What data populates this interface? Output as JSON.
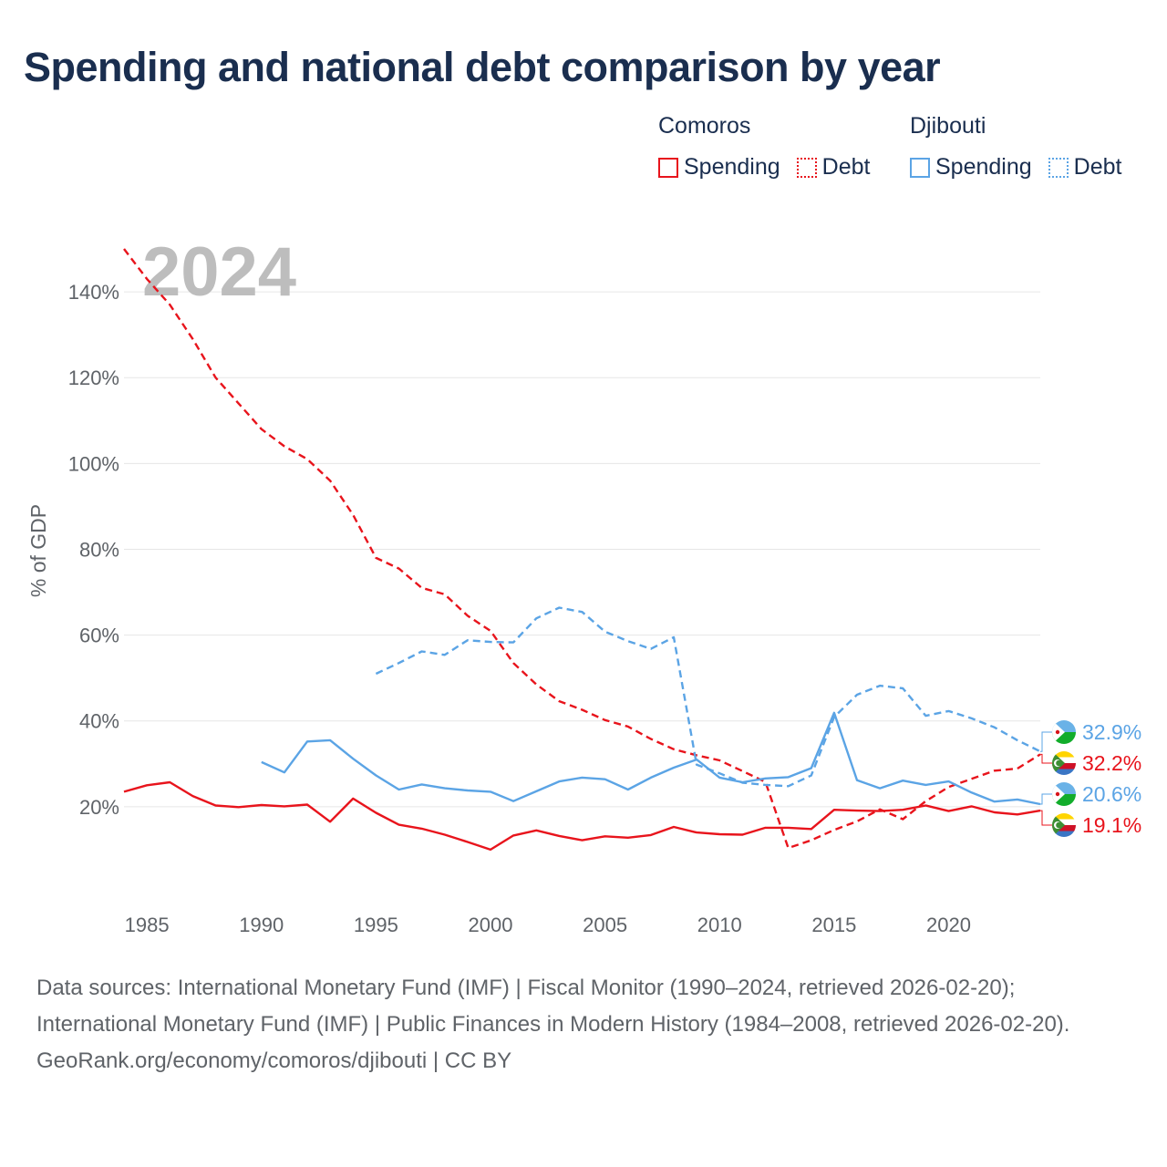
{
  "title": "Spending and national debt comparison by year",
  "legend": [
    {
      "country": "Comoros",
      "color": "#e8141c",
      "spending_label": "Spending",
      "debt_label": "Debt"
    },
    {
      "country": "Djibouti",
      "color": "#5ba4e5",
      "spending_label": "Spending",
      "debt_label": "Debt"
    }
  ],
  "year_watermark": "2024",
  "sources": {
    "line1": "Data sources: International Monetary Fund (IMF) | Fiscal Monitor (1990–2024, retrieved 2026-02-20); International Monetary Fund (IMF) | Public Finances in Modern History (1984–2008, retrieved 2026-02-20).",
    "line2": "GeoRank.org/economy/comoros/djibouti | CC BY"
  },
  "chart_data": {
    "type": "line",
    "title": "Spending and national debt comparison by year",
    "xlabel": "",
    "ylabel": "% of GDP",
    "xlim": [
      1984,
      2024
    ],
    "ylim": [
      0,
      150
    ],
    "x_ticks": [
      1985,
      1990,
      1995,
      2000,
      2005,
      2010,
      2015,
      2020
    ],
    "y_ticks": [
      20,
      40,
      60,
      80,
      100,
      120,
      140
    ],
    "y_tick_labels": [
      "20%",
      "40%",
      "60%",
      "80%",
      "100%",
      "120%",
      "140%"
    ],
    "grid": true,
    "series": [
      {
        "name": "Comoros Spending",
        "country": "Comoros",
        "kind": "spending",
        "style": "solid",
        "color": "#e8141c",
        "x": [
          1984,
          1985,
          1986,
          1987,
          1988,
          1989,
          1990,
          1991,
          1992,
          1993,
          1994,
          1995,
          1996,
          1997,
          1998,
          1999,
          2000,
          2001,
          2002,
          2003,
          2004,
          2005,
          2006,
          2007,
          2008,
          2009,
          2010,
          2011,
          2012,
          2013,
          2014,
          2015,
          2016,
          2017,
          2018,
          2019,
          2020,
          2021,
          2022,
          2023,
          2024
        ],
        "values": [
          23.5,
          25.0,
          25.7,
          22.5,
          20.3,
          19.9,
          20.4,
          20.1,
          20.5,
          16.5,
          21.9,
          18.6,
          15.8,
          14.9,
          13.5,
          11.8,
          10.0,
          13.3,
          14.5,
          13.2,
          12.2,
          13.1,
          12.8,
          13.4,
          15.3,
          14.0,
          13.6,
          13.5,
          15.1,
          15.1,
          14.8,
          19.3,
          19.1,
          19.0,
          19.3,
          20.3,
          19.0,
          20.1,
          18.7,
          18.2,
          19.1
        ]
      },
      {
        "name": "Comoros Debt",
        "country": "Comoros",
        "kind": "debt",
        "style": "dashed",
        "color": "#e8141c",
        "x": [
          1984,
          1985,
          1986,
          1987,
          1988,
          1989,
          1990,
          1991,
          1992,
          1993,
          1994,
          1995,
          1996,
          1997,
          1998,
          1999,
          2000,
          2001,
          2002,
          2003,
          2004,
          2005,
          2006,
          2007,
          2008,
          2009,
          2010,
          2011,
          2012,
          2013,
          2014,
          2015,
          2016,
          2017,
          2018,
          2019,
          2020,
          2021,
          2022,
          2023,
          2024
        ],
        "values": [
          150,
          143,
          137,
          129,
          120,
          114,
          108,
          104,
          101,
          96,
          88,
          78,
          75.5,
          71,
          69.5,
          64.5,
          61,
          53.5,
          48.5,
          44.6,
          42.6,
          40.2,
          38.7,
          35.8,
          33.4,
          32.0,
          30.8,
          28.3,
          25.8,
          10.4,
          12.2,
          14.6,
          16.6,
          19.4,
          17.1,
          21.3,
          24.6,
          26.5,
          28.4,
          28.9,
          32.2
        ]
      },
      {
        "name": "Djibouti Spending",
        "country": "Djibouti",
        "kind": "spending",
        "style": "solid",
        "color": "#5ba4e5",
        "x": [
          1990,
          1991,
          1992,
          1993,
          1994,
          1995,
          1996,
          1997,
          1998,
          1999,
          2000,
          2001,
          2002,
          2003,
          2004,
          2005,
          2006,
          2007,
          2008,
          2009,
          2010,
          2011,
          2012,
          2013,
          2014,
          2015,
          2016,
          2017,
          2018,
          2019,
          2020,
          2021,
          2022,
          2023,
          2024
        ],
        "values": [
          30.4,
          28.0,
          35.2,
          35.5,
          31.2,
          27.3,
          24.0,
          25.2,
          24.3,
          23.8,
          23.5,
          21.3,
          23.6,
          25.9,
          26.8,
          26.4,
          24.0,
          26.8,
          29.1,
          31.0,
          26.8,
          25.7,
          26.6,
          26.9,
          29.0,
          41.9,
          26.2,
          24.3,
          26.1,
          25.1,
          25.9,
          23.3,
          21.2,
          21.7,
          20.6
        ]
      },
      {
        "name": "Djibouti Debt",
        "country": "Djibouti",
        "kind": "debt",
        "style": "dashed",
        "color": "#5ba4e5",
        "x": [
          1995,
          1996,
          1997,
          1998,
          1999,
          2000,
          2001,
          2002,
          2003,
          2004,
          2005,
          2006,
          2007,
          2008,
          2009,
          2010,
          2011,
          2012,
          2013,
          2014,
          2015,
          2016,
          2017,
          2018,
          2019,
          2020,
          2021,
          2022,
          2023,
          2024
        ],
        "values": [
          51.0,
          53.5,
          56.2,
          55.4,
          58.8,
          58.4,
          58.3,
          63.9,
          66.4,
          65.4,
          60.8,
          58.6,
          56.8,
          59.5,
          29.8,
          27.8,
          25.6,
          25.1,
          24.8,
          27.3,
          40.9,
          46.1,
          48.2,
          47.6,
          41.2,
          42.3,
          40.6,
          38.5,
          35.5,
          32.9
        ]
      }
    ],
    "end_labels": [
      {
        "text": "32.9%",
        "country": "Djibouti",
        "kind": "debt",
        "value": 32.9,
        "color": "#5ba4e5"
      },
      {
        "text": "32.2%",
        "country": "Comoros",
        "kind": "debt",
        "value": 32.2,
        "color": "#e8141c"
      },
      {
        "text": "20.6%",
        "country": "Djibouti",
        "kind": "spending",
        "value": 20.6,
        "color": "#5ba4e5"
      },
      {
        "text": "19.1%",
        "country": "Comoros",
        "kind": "spending",
        "value": 19.1,
        "color": "#e8141c"
      }
    ]
  }
}
